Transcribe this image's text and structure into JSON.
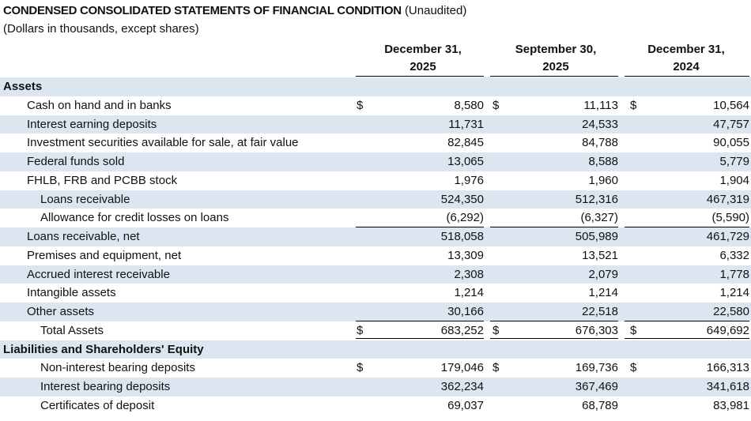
{
  "title": "CONDENSED CONSOLIDATED STATEMENTS OF FINANCIAL CONDITION",
  "title_suffix": "(Unaudited)",
  "subtitle": "(Dollars in thousands, except shares)",
  "columns": [
    {
      "line1": "December 31,",
      "line2": "2025"
    },
    {
      "line1": "September 30,",
      "line2": "2025"
    },
    {
      "line1": "December 31,",
      "line2": "2024"
    }
  ],
  "rows": [
    {
      "type": "section",
      "label": "Assets"
    },
    {
      "type": "item",
      "indent": 1,
      "label": "Cash on hand and in banks",
      "dollar": true,
      "values": [
        "8,580",
        "11,113",
        "10,564"
      ]
    },
    {
      "type": "item",
      "indent": 1,
      "label": "Interest earning deposits",
      "values": [
        "11,731",
        "24,533",
        "47,757"
      ]
    },
    {
      "type": "item",
      "indent": 1,
      "label": "Investment securities available for sale, at fair value",
      "values": [
        "82,845",
        "84,788",
        "90,055"
      ]
    },
    {
      "type": "item",
      "indent": 1,
      "label": "Federal funds sold",
      "values": [
        "13,065",
        "8,588",
        "5,779"
      ]
    },
    {
      "type": "item",
      "indent": 1,
      "label": "FHLB, FRB and PCBB stock",
      "values": [
        "1,976",
        "1,960",
        "1,904"
      ]
    },
    {
      "type": "item",
      "indent": 2,
      "label": "Loans receivable",
      "values": [
        "524,350",
        "512,316",
        "467,319"
      ]
    },
    {
      "type": "item",
      "indent": 2,
      "label": "Allowance for credit losses on loans",
      "underline": true,
      "values": [
        "(6,292)",
        "(6,327)",
        "(5,590)"
      ]
    },
    {
      "type": "item",
      "indent": 1,
      "label": "Loans receivable, net",
      "values": [
        "518,058",
        "505,989",
        "461,729"
      ]
    },
    {
      "type": "item",
      "indent": 1,
      "label": "Premises and equipment, net",
      "values": [
        "13,309",
        "13,521",
        "6,332"
      ]
    },
    {
      "type": "item",
      "indent": 1,
      "label": "Accrued interest receivable",
      "values": [
        "2,308",
        "2,079",
        "1,778"
      ]
    },
    {
      "type": "item",
      "indent": 1,
      "label": "Intangible assets",
      "values": [
        "1,214",
        "1,214",
        "1,214"
      ]
    },
    {
      "type": "item",
      "indent": 1,
      "label": "Other assets",
      "underline": true,
      "values": [
        "30,166",
        "22,518",
        "22,580"
      ]
    },
    {
      "type": "item",
      "indent": 2,
      "label": "Total Assets",
      "dollar": true,
      "double_underline": true,
      "values": [
        "683,252",
        "676,303",
        "649,692"
      ]
    },
    {
      "type": "section",
      "label": "Liabilities and Shareholders' Equity"
    },
    {
      "type": "item",
      "indent": 2,
      "label": "Non-interest bearing deposits",
      "dollar": true,
      "values": [
        "179,046",
        "169,736",
        "166,313"
      ]
    },
    {
      "type": "item",
      "indent": 2,
      "label": "Interest bearing deposits",
      "values": [
        "362,234",
        "367,469",
        "341,618"
      ]
    },
    {
      "type": "item",
      "indent": 2,
      "label": "Certificates of deposit",
      "values": [
        "69,037",
        "68,789",
        "83,981"
      ]
    }
  ],
  "currency_symbol": "$"
}
